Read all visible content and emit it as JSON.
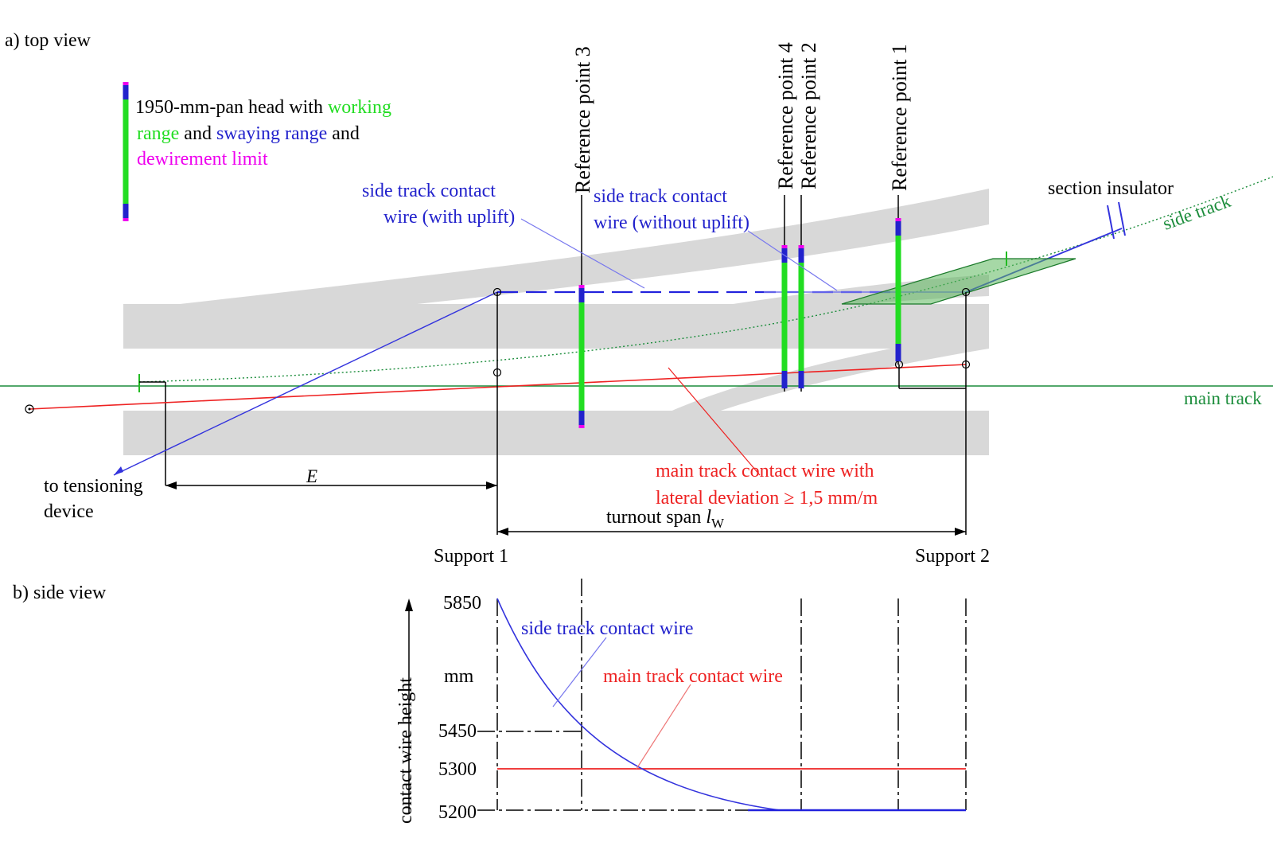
{
  "top_view": {
    "section_label": "a) top view",
    "legend": {
      "part1": "1950-mm-pan head with ",
      "working": "working",
      "range": "range",
      "and1": " and ",
      "swaying": "swaying range",
      "and2": " and",
      "dewirement": "dewirement limit"
    },
    "reference_points": [
      "Reference point 3",
      "Reference point 4",
      "Reference point 2",
      "Reference point 1"
    ],
    "side_wire_uplift": [
      "side track contact",
      "wire (with uplift)"
    ],
    "side_wire_no_uplift": [
      "side track contact",
      "wire (without uplift)"
    ],
    "section_insulator": "section insulator",
    "side_track": "side track",
    "main_track": "main track",
    "tensioning": [
      "to tensioning",
      "device"
    ],
    "dim_E": "E",
    "main_wire_label": [
      "main track contact wire with",
      "lateral deviation ≥ 1,5 mm/m"
    ],
    "turnout_span": "turnout span ",
    "turnout_span_symbol": "l",
    "turnout_span_sub": "W",
    "support1": "Support 1",
    "support2": "Support 2"
  },
  "side_view": {
    "section_label": "b) side view",
    "y_axis_label": "contact wire height",
    "unit": "mm",
    "ticks": [
      "5850",
      "5450",
      "5300",
      "5200"
    ],
    "side_wire_label": "side track contact wire",
    "main_wire_label": "main track contact wire"
  },
  "colors": {
    "side_wire": "#3333dd",
    "main_wire": "#ee2222",
    "working_range": "#22dd22",
    "swaying_range": "#2222cc",
    "dewirement": "#ee00ee",
    "track": "#1a8c3a",
    "rail_band": "#d8d8d8"
  }
}
